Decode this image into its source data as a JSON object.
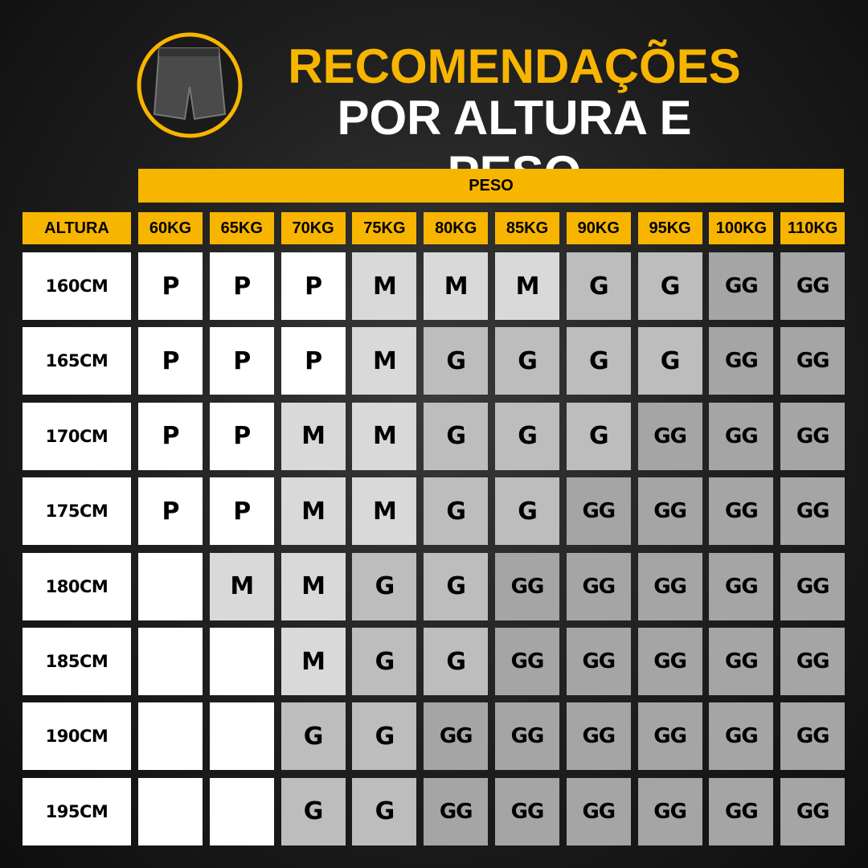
{
  "header": {
    "title_line1": "RECOMENDAÇÕES",
    "title_line2": "POR ALTURA E PESO"
  },
  "table": {
    "group_header": "PESO",
    "row_header": "ALTURA",
    "columns": [
      "60KG",
      "65KG",
      "70KG",
      "75KG",
      "80KG",
      "85KG",
      "90KG",
      "95KG",
      "100KG",
      "110KG"
    ],
    "rows": [
      {
        "label": "160CM",
        "cells": [
          "P",
          "P",
          "P",
          "M",
          "M",
          "M",
          "G",
          "G",
          "GG",
          "GG"
        ]
      },
      {
        "label": "165CM",
        "cells": [
          "P",
          "P",
          "P",
          "M",
          "G",
          "G",
          "G",
          "G",
          "GG",
          "GG"
        ]
      },
      {
        "label": "170CM",
        "cells": [
          "P",
          "P",
          "M",
          "M",
          "G",
          "G",
          "G",
          "GG",
          "GG",
          "GG"
        ]
      },
      {
        "label": "175CM",
        "cells": [
          "P",
          "P",
          "M",
          "M",
          "G",
          "G",
          "GG",
          "GG",
          "GG",
          "GG"
        ]
      },
      {
        "label": "180CM",
        "cells": [
          null,
          "M",
          "M",
          "G",
          "G",
          "GG",
          "GG",
          "GG",
          "GG",
          "GG"
        ]
      },
      {
        "label": "185CM",
        "cells": [
          null,
          null,
          "M",
          "G",
          "G",
          "GG",
          "GG",
          "GG",
          "GG",
          "GG"
        ]
      },
      {
        "label": "190CM",
        "cells": [
          null,
          null,
          "G",
          "G",
          "GG",
          "GG",
          "GG",
          "GG",
          "GG",
          "GG"
        ]
      },
      {
        "label": "195CM",
        "cells": [
          null,
          null,
          "G",
          "G",
          "GG",
          "GG",
          "GG",
          "GG",
          "GG",
          "GG"
        ]
      }
    ]
  }
}
